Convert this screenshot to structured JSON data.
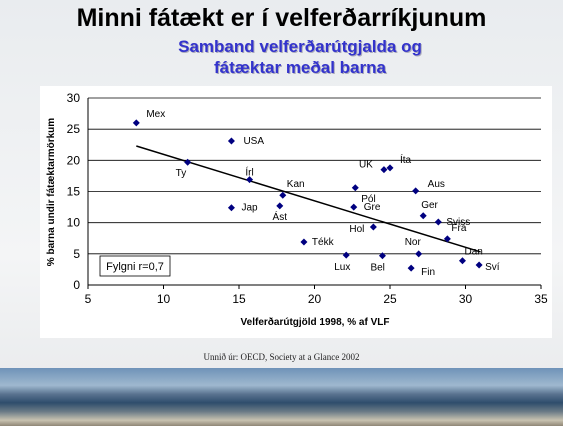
{
  "title": "Minni fátækt er í velferðarríkjunum",
  "subtitle": "Samband velferðarútgjalda og fátæktar meðal barna",
  "source": "Unnið úr: OECD, Society at a Glance 2002",
  "chart_data": {
    "type": "scatter",
    "xlabel": "Velferðarútgjöld 1998, % af VLF",
    "ylabel": "% barna undir fátæktarmörkum",
    "annotation": "Fylgni r=0,7",
    "labels": [
      "Mex",
      "USA",
      "Ty",
      "Írl",
      "Kan",
      "Ást",
      "Jap",
      "Tékk",
      "UK",
      "Íta",
      "Pól",
      "Gre",
      "Hol",
      "Lux",
      "Bel",
      "Aus",
      "Ger",
      "Sviss",
      "Fra",
      "Nor",
      "Fin",
      "Dan",
      "Sví"
    ],
    "x": [
      8.2,
      14.5,
      11.6,
      15.7,
      17.9,
      17.7,
      14.5,
      19.3,
      24.6,
      25.0,
      22.7,
      22.6,
      23.9,
      22.1,
      24.5,
      26.7,
      27.2,
      28.2,
      28.8,
      26.9,
      26.4,
      29.8,
      30.9
    ],
    "values": [
      26.0,
      23.1,
      19.7,
      16.9,
      14.4,
      12.7,
      12.4,
      6.9,
      18.5,
      18.8,
      15.6,
      12.5,
      9.3,
      4.8,
      4.7,
      15.1,
      11.1,
      10.1,
      7.4,
      5.0,
      2.7,
      3.9,
      3.2
    ],
    "color": "#000080",
    "trendline": {
      "x": [
        8.2,
        31.0
      ],
      "y": [
        22.3,
        5.3
      ]
    },
    "xlim": [
      5,
      35
    ],
    "ylim": [
      0,
      30
    ],
    "xticks": [
      5,
      10,
      15,
      20,
      25,
      30,
      35
    ],
    "yticks": [
      0,
      5,
      10,
      15,
      20,
      25,
      30
    ],
    "grid": true
  }
}
